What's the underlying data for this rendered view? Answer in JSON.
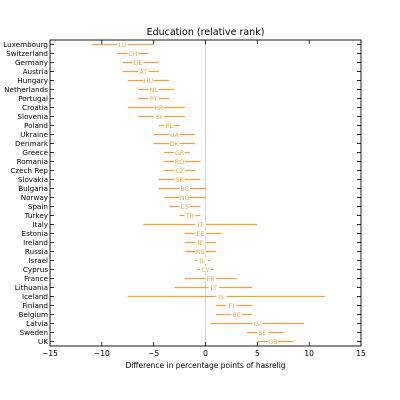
{
  "chart_data": {
    "type": "errorbar",
    "title": "Education (relative rank)",
    "xlabel": "Difference in percentage points of hasrelig",
    "ylabel": "",
    "xlim": [
      -15,
      15
    ],
    "xticks": [
      -15,
      -10,
      -5,
      0,
      5,
      10,
      15
    ],
    "xtick_labels": [
      "−15",
      "−10",
      "−5",
      "0",
      "5",
      "10",
      "15"
    ],
    "grid": false,
    "reference_line_x": 0,
    "series_color": "#f0a043",
    "points": [
      {
        "country": "Luxembourg",
        "code": "LU",
        "low": -11.0,
        "value": -8.0,
        "high": -5.0
      },
      {
        "country": "Switzerland",
        "code": "CH",
        "low": -8.5,
        "value": -7.0,
        "high": -5.5
      },
      {
        "country": "Germany",
        "code": "DE",
        "low": -8.0,
        "value": -6.5,
        "high": -4.5
      },
      {
        "country": "Austria",
        "code": "AT",
        "low": -8.0,
        "value": -6.0,
        "high": -4.5
      },
      {
        "country": "Hungary",
        "code": "HU",
        "low": -7.5,
        "value": -5.5,
        "high": -3.5
      },
      {
        "country": "Netherlands",
        "code": "NL",
        "low": -6.5,
        "value": -5.0,
        "high": -3.0
      },
      {
        "country": "Portugal",
        "code": "PT",
        "low": -6.5,
        "value": -5.0,
        "high": -3.5
      },
      {
        "country": "Croatia",
        "code": "HR",
        "low": -7.5,
        "value": -4.5,
        "high": -2.0
      },
      {
        "country": "Slovenia",
        "code": "SI",
        "low": -6.5,
        "value": -4.5,
        "high": -2.0
      },
      {
        "country": "Poland",
        "code": "PL",
        "low": -4.5,
        "value": -3.5,
        "high": -2.5
      },
      {
        "country": "Ukraine",
        "code": "UA",
        "low": -5.0,
        "value": -3.0,
        "high": -1.0
      },
      {
        "country": "Denmark",
        "code": "DK",
        "low": -5.0,
        "value": -3.0,
        "high": -1.0
      },
      {
        "country": "Greece",
        "code": "GR",
        "low": -4.0,
        "value": -2.5,
        "high": -1.5
      },
      {
        "country": "Romania",
        "code": "RO",
        "low": -4.0,
        "value": -2.5,
        "high": -0.5
      },
      {
        "country": "Czech Rep",
        "code": "CZ",
        "low": -4.0,
        "value": -2.5,
        "high": -1.0
      },
      {
        "country": "Slovakia",
        "code": "SK",
        "low": -4.5,
        "value": -2.5,
        "high": -0.5
      },
      {
        "country": "Bulgaria",
        "code": "BG",
        "low": -4.5,
        "value": -2.0,
        "high": 0.0
      },
      {
        "country": "Norway",
        "code": "NO",
        "low": -4.0,
        "value": -2.0,
        "high": 0.0
      },
      {
        "country": "Spain",
        "code": "ES",
        "low": -3.5,
        "value": -2.0,
        "high": -0.5
      },
      {
        "country": "Turkey",
        "code": "TR",
        "low": -2.5,
        "value": -1.5,
        "high": -0.5
      },
      {
        "country": "Italy",
        "code": "IT",
        "low": -6.0,
        "value": -0.5,
        "high": 5.0
      },
      {
        "country": "Estonia",
        "code": "EE",
        "low": -2.0,
        "value": -0.5,
        "high": 1.5
      },
      {
        "country": "Ireland",
        "code": "IE",
        "low": -2.0,
        "value": -0.5,
        "high": 1.0
      },
      {
        "country": "Russia",
        "code": "RU",
        "low": -2.0,
        "value": -0.5,
        "high": 1.0
      },
      {
        "country": "Israel",
        "code": "IL",
        "low": -1.0,
        "value": -0.3,
        "high": 0.5
      },
      {
        "country": "Cyprus",
        "code": "CY",
        "low": -0.8,
        "value": 0.0,
        "high": 0.8
      },
      {
        "country": "France",
        "code": "FR",
        "low": -2.0,
        "value": 0.5,
        "high": 3.0
      },
      {
        "country": "Lithuania",
        "code": "LT",
        "low": -3.0,
        "value": 0.8,
        "high": 4.5
      },
      {
        "country": "Iceland",
        "code": "IS",
        "low": -7.5,
        "value": 1.5,
        "high": 11.5
      },
      {
        "country": "Finland",
        "code": "FI",
        "low": 1.0,
        "value": 2.5,
        "high": 4.5
      },
      {
        "country": "Belgium",
        "code": "BE",
        "low": 1.0,
        "value": 3.0,
        "high": 4.5
      },
      {
        "country": "Latvia",
        "code": "LV",
        "low": 0.5,
        "value": 5.0,
        "high": 9.5
      },
      {
        "country": "Sweden",
        "code": "SE",
        "low": 4.0,
        "value": 5.5,
        "high": 7.5
      },
      {
        "country": "UK",
        "code": "GB",
        "low": 5.0,
        "value": 6.5,
        "high": 8.5
      }
    ]
  }
}
